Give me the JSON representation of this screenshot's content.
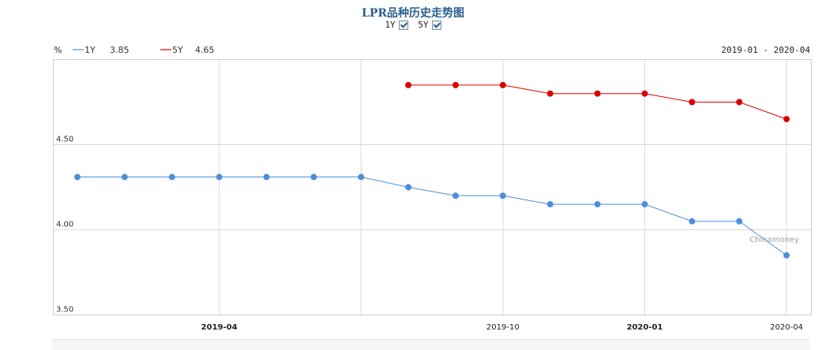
{
  "header": {
    "title": "LPR品种历史走势图",
    "toggles": [
      {
        "label": "1Y",
        "checked": true
      },
      {
        "label": "5Y",
        "checked": true
      }
    ]
  },
  "chart_data": {
    "type": "line",
    "title": "LPR品种历史走势图",
    "unit_label": "%",
    "date_range": "2019-01 - 2020-04",
    "watermark": "Chinamoney",
    "ylim": [
      3.5,
      5.0
    ],
    "y_ticks": [
      "4.50",
      "4.00",
      "3.50"
    ],
    "x_tick_labels": [
      "2019-04",
      "2019-10",
      "2020-01",
      "2020-04"
    ],
    "x": [
      "2019-01",
      "2019-02",
      "2019-03",
      "2019-04",
      "2019-05",
      "2019-06",
      "2019-07",
      "2019-08",
      "2019-09",
      "2019-10",
      "2019-11",
      "2019-12",
      "2020-01",
      "2020-02",
      "2020-03",
      "2020-04"
    ],
    "series": [
      {
        "name": "1Y",
        "latest": "3.85",
        "color": "#4a90d9",
        "values": [
          4.31,
          4.31,
          4.31,
          4.31,
          4.31,
          4.31,
          4.31,
          4.25,
          4.2,
          4.2,
          4.15,
          4.15,
          4.15,
          4.05,
          4.05,
          3.85
        ]
      },
      {
        "name": "5Y",
        "latest": "4.65",
        "color": "#dd0000",
        "values": [
          null,
          null,
          null,
          null,
          null,
          null,
          null,
          4.85,
          4.85,
          4.85,
          4.8,
          4.8,
          4.8,
          4.75,
          4.75,
          4.65
        ]
      }
    ]
  }
}
